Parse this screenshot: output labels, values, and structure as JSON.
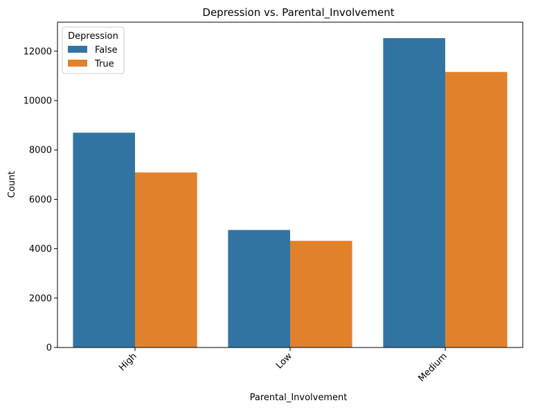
{
  "chart_data": {
    "type": "bar",
    "title": "Depression vs. Parental_Involvement",
    "xlabel": "Parental_Involvement",
    "ylabel": "Count",
    "categories": [
      "High",
      "Low",
      "Medium"
    ],
    "series": [
      {
        "name": "False",
        "color": "#3274a1",
        "values": [
          8700,
          4760,
          12530
        ]
      },
      {
        "name": "True",
        "color": "#e1812c",
        "values": [
          7090,
          4320,
          11160
        ]
      }
    ],
    "ylim": [
      0,
      13175
    ],
    "yticks": [
      0,
      2000,
      4000,
      6000,
      8000,
      10000,
      12000
    ],
    "ytick_labels": [
      "0",
      "2000",
      "4000",
      "6000",
      "8000",
      "10000",
      "12000"
    ],
    "legend": {
      "title": "Depression",
      "placement": "top-left"
    },
    "grid": false
  }
}
